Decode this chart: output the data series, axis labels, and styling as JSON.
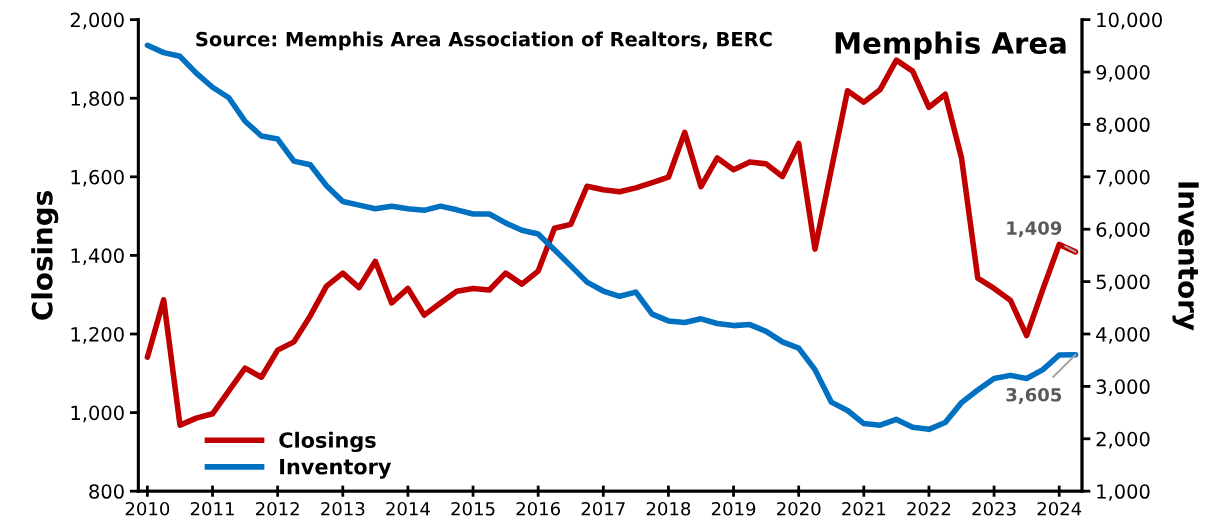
{
  "chart_data": {
    "type": "line",
    "title": "Memphis Area",
    "ylabel": "Closings",
    "y2label": "Inventory",
    "annotations": [
      "Source: Memphis Area Association of Realtors, BERC"
    ],
    "x": [
      2010,
      2010.25,
      2010.5,
      2010.75,
      2011,
      2011.25,
      2011.5,
      2011.75,
      2012,
      2012.25,
      2012.5,
      2012.75,
      2013,
      2013.25,
      2013.5,
      2013.75,
      2014,
      2014.25,
      2014.5,
      2014.75,
      2015,
      2015.25,
      2015.5,
      2015.75,
      2016,
      2016.25,
      2016.5,
      2016.75,
      2017,
      2017.25,
      2017.5,
      2017.75,
      2018,
      2018.25,
      2018.5,
      2018.75,
      2019,
      2019.25,
      2019.5,
      2019.75,
      2020,
      2020.25,
      2020.5,
      2020.75,
      2021,
      2021.25,
      2021.5,
      2021.75,
      2022,
      2022.25,
      2022.5,
      2022.75,
      2023,
      2023.25,
      2023.5,
      2023.75,
      2024,
      2024.25
    ],
    "series": [
      {
        "name": "Closings",
        "color": "#c00000",
        "values": [
          1141,
          1287,
          968,
          986,
          997,
          1055,
          1113,
          1090,
          1159,
          1180,
          1246,
          1322,
          1355,
          1318,
          1385,
          1279,
          1316,
          1248,
          1279,
          1309,
          1316,
          1312,
          1355,
          1327,
          1360,
          1469,
          1479,
          1576,
          1567,
          1562,
          1572,
          1585,
          1599,
          1713,
          1575,
          1648,
          1618,
          1638,
          1633,
          1601,
          1685,
          1416,
          1618,
          1819,
          1790,
          1822,
          1897,
          1869,
          1777,
          1810,
          1648,
          1342,
          1316,
          1286,
          1196,
          1314,
          1428,
          1409
        ],
        "value_labels": [
          null,
          null,
          null,
          null,
          null,
          null,
          null,
          null,
          null,
          null,
          null,
          null,
          null,
          null,
          null,
          null,
          null,
          null,
          null,
          null,
          null,
          null,
          null,
          null,
          null,
          null,
          null,
          null,
          null,
          null,
          null,
          null,
          null,
          null,
          null,
          null,
          null,
          null,
          null,
          null,
          null,
          null,
          null,
          null,
          null,
          null,
          null,
          null,
          null,
          null,
          null,
          null,
          null,
          null,
          null,
          null,
          null,
          "1,409"
        ]
      },
      {
        "name": "Inventory",
        "color": "#0070c0",
        "axis": "y2",
        "values": [
          9510,
          9370,
          9300,
          8980,
          8710,
          8510,
          8060,
          7780,
          7720,
          7300,
          7230,
          6830,
          6530,
          6460,
          6390,
          6440,
          6390,
          6360,
          6440,
          6370,
          6290,
          6290,
          6120,
          5980,
          5910,
          5610,
          5300,
          4990,
          4820,
          4720,
          4800,
          4380,
          4250,
          4220,
          4290,
          4200,
          4160,
          4180,
          4050,
          3850,
          3730,
          3320,
          2700,
          2540,
          2290,
          2260,
          2370,
          2220,
          2180,
          2310,
          2690,
          2930,
          3150,
          3210,
          3150,
          3320,
          3600,
          3605
        ],
        "value_labels": [
          null,
          null,
          null,
          null,
          null,
          null,
          null,
          null,
          null,
          null,
          null,
          null,
          null,
          null,
          null,
          null,
          null,
          null,
          null,
          null,
          null,
          null,
          null,
          null,
          null,
          null,
          null,
          null,
          null,
          null,
          null,
          null,
          null,
          null,
          null,
          null,
          null,
          null,
          null,
          null,
          null,
          null,
          null,
          null,
          null,
          null,
          null,
          null,
          null,
          null,
          null,
          null,
          null,
          null,
          null,
          null,
          null,
          "3,605"
        ]
      }
    ],
    "xlim": [
      2009.86,
      2024.35
    ],
    "xticks": [
      {
        "value": 2010,
        "label": "2010"
      },
      {
        "value": 2011,
        "label": "2011"
      },
      {
        "value": 2012,
        "label": "2012"
      },
      {
        "value": 2013,
        "label": "2013"
      },
      {
        "value": 2014,
        "label": "2014"
      },
      {
        "value": 2015,
        "label": "2015"
      },
      {
        "value": 2016,
        "label": "2016"
      },
      {
        "value": 2017,
        "label": "2017"
      },
      {
        "value": 2018,
        "label": "2018"
      },
      {
        "value": 2019,
        "label": "2019"
      },
      {
        "value": 2020,
        "label": "2020"
      },
      {
        "value": 2021,
        "label": "2021"
      },
      {
        "value": 2022,
        "label": "2022"
      },
      {
        "value": 2023,
        "label": "2023"
      },
      {
        "value": 2024,
        "label": "2024"
      }
    ],
    "ylim": [
      800,
      2000
    ],
    "yticks": [
      {
        "value": 800,
        "label": "800"
      },
      {
        "value": 1000,
        "label": "1,000"
      },
      {
        "value": 1200,
        "label": "1,200"
      },
      {
        "value": 1400,
        "label": "1,400"
      },
      {
        "value": 1600,
        "label": "1,600"
      },
      {
        "value": 1800,
        "label": "1,800"
      },
      {
        "value": 2000,
        "label": "2,000"
      }
    ],
    "y2lim": [
      1000,
      10000
    ],
    "y2ticks": [
      {
        "value": 1000,
        "label": "1,000"
      },
      {
        "value": 2000,
        "label": "2,000"
      },
      {
        "value": 3000,
        "label": "3,000"
      },
      {
        "value": 4000,
        "label": "4,000"
      },
      {
        "value": 5000,
        "label": "5,000"
      },
      {
        "value": 6000,
        "label": "6,000"
      },
      {
        "value": 7000,
        "label": "7,000"
      },
      {
        "value": 8000,
        "label": "8,000"
      },
      {
        "value": 9000,
        "label": "9,000"
      },
      {
        "value": 10000,
        "label": "10,000"
      }
    ],
    "legend": "bottom left",
    "grid": false,
    "marker": "none",
    "line_style": "solid"
  }
}
